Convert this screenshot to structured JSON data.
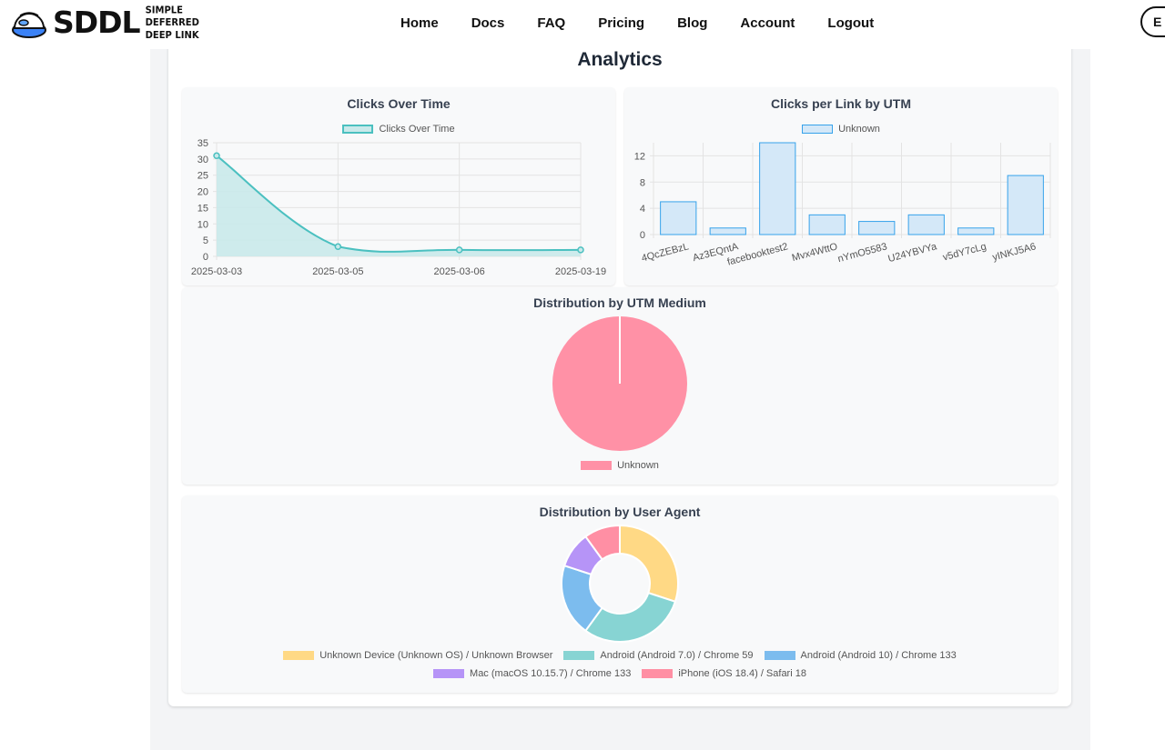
{
  "header": {
    "logo_text": "SDDL",
    "logo_tagline": "SIMPLE DEFERRED DEEP LINK",
    "nav": [
      "Home",
      "Docs",
      "FAQ",
      "Pricing",
      "Blog",
      "Account",
      "Logout"
    ],
    "cta_label": "E"
  },
  "page": {
    "title": "Analytics"
  },
  "colors": {
    "teal": "#4bc0c0",
    "teal_fill": "#c9e9ea",
    "blue": "#36a2eb",
    "blue_fill": "#d4e8f8",
    "pink": "#ff91a6",
    "yellow": "#ffd985",
    "mint": "#87d4d3",
    "sky": "#7cbcee",
    "purple": "#b694f7",
    "rose": "#ff8fa4"
  },
  "chart_data": [
    {
      "type": "line",
      "title": "Clicks Over Time",
      "legend": "Clicks Over Time",
      "x": [
        "2025-03-03",
        "2025-03-05",
        "2025-03-06",
        "2025-03-19"
      ],
      "values": [
        31,
        3,
        2,
        2
      ],
      "ylim": [
        0,
        35
      ],
      "yticks": [
        "0",
        "5",
        "10",
        "15",
        "20",
        "25",
        "30",
        "35"
      ]
    },
    {
      "type": "bar",
      "title": "Clicks per Link by UTM",
      "legend": "Unknown",
      "categories": [
        "4QcZEBzL",
        "Az3EQntA",
        "facebooktest2",
        "Mvx4WttO",
        "nYmO5583",
        "U24YBVYa",
        "v5dY7cLg",
        "yINKJ5A6"
      ],
      "values": [
        5,
        1,
        14,
        3,
        2,
        3,
        1,
        9
      ],
      "ylim": [
        0,
        14
      ],
      "yticks": [
        "0",
        "4",
        "8",
        "12"
      ]
    },
    {
      "type": "pie",
      "title": "Distribution by UTM Medium",
      "labels": [
        "Unknown"
      ],
      "values": [
        1
      ]
    },
    {
      "type": "pie",
      "title": "Distribution by User Agent",
      "labels": [
        "Unknown Device (Unknown OS) / Unknown Browser",
        "Android (Android 7.0) / Chrome 59",
        "Android (Android 10) / Chrome 133",
        "Mac (macOS 10.15.7) / Chrome 133",
        "iPhone (iOS 18.4) / Safari 18"
      ],
      "values": [
        30,
        30,
        20,
        10,
        10
      ]
    }
  ]
}
